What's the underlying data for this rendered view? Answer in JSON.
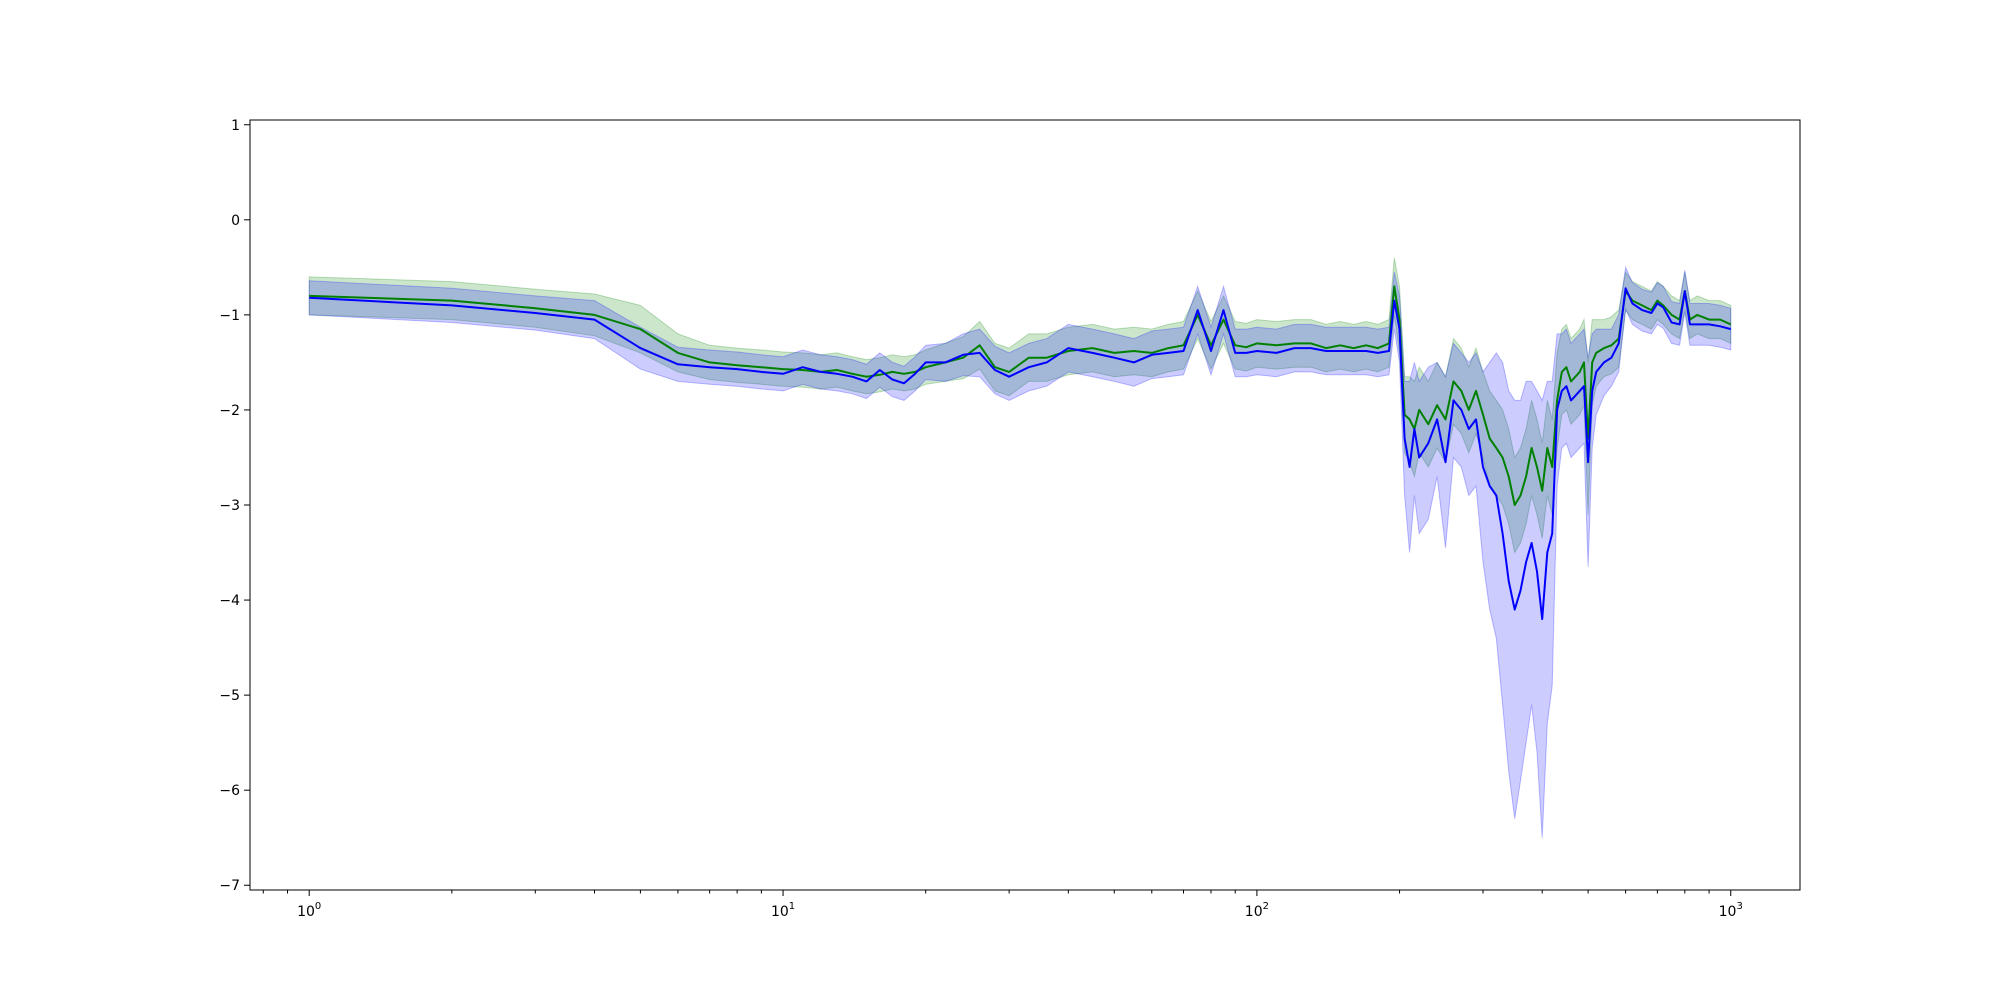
{
  "chart_data": {
    "type": "line",
    "title": "",
    "xlabel": "",
    "ylabel": "",
    "xscale": "log",
    "xlim": [
      0.75,
      1400
    ],
    "ylim": [
      -7.05,
      1.05
    ],
    "grid": false,
    "legend": "none",
    "x_ticks": [
      {
        "value": 1,
        "base": "10",
        "exp": "0"
      },
      {
        "value": 10,
        "base": "10",
        "exp": "1"
      },
      {
        "value": 100,
        "base": "10",
        "exp": "2"
      },
      {
        "value": 1000,
        "base": "10",
        "exp": "3"
      }
    ],
    "y_ticks": [
      1,
      0,
      -1,
      -2,
      -3,
      -4,
      -5,
      -6,
      -7
    ],
    "series": [
      {
        "color": "#008000",
        "band_color": "#008000",
        "x": [
          1,
          2,
          3,
          4,
          5,
          6,
          7,
          8,
          9,
          10,
          11,
          12,
          13,
          14,
          15,
          16,
          17,
          18,
          19,
          20,
          22,
          24,
          26,
          28,
          30,
          33,
          36,
          40,
          45,
          50,
          55,
          60,
          65,
          70,
          75,
          80,
          85,
          90,
          95,
          100,
          110,
          120,
          130,
          140,
          150,
          160,
          170,
          180,
          190,
          195,
          200,
          205,
          210,
          215,
          220,
          230,
          240,
          250,
          260,
          270,
          280,
          290,
          300,
          310,
          320,
          330,
          340,
          350,
          360,
          370,
          380,
          390,
          400,
          410,
          420,
          430,
          440,
          450,
          460,
          470,
          480,
          490,
          500,
          510,
          520,
          540,
          560,
          580,
          600,
          620,
          650,
          680,
          700,
          720,
          750,
          780,
          800,
          820,
          850,
          900,
          950,
          1000
        ],
        "mean": [
          -0.8,
          -0.85,
          -0.93,
          -1.0,
          -1.15,
          -1.4,
          -1.5,
          -1.53,
          -1.55,
          -1.57,
          -1.58,
          -1.6,
          -1.58,
          -1.62,
          -1.65,
          -1.63,
          -1.6,
          -1.62,
          -1.6,
          -1.55,
          -1.5,
          -1.45,
          -1.32,
          -1.55,
          -1.6,
          -1.45,
          -1.45,
          -1.38,
          -1.35,
          -1.4,
          -1.38,
          -1.4,
          -1.35,
          -1.32,
          -1.0,
          -1.32,
          -1.05,
          -1.32,
          -1.34,
          -1.3,
          -1.32,
          -1.3,
          -1.3,
          -1.35,
          -1.32,
          -1.35,
          -1.32,
          -1.35,
          -1.3,
          -0.7,
          -1.05,
          -2.05,
          -2.1,
          -2.2,
          -2.0,
          -2.15,
          -1.95,
          -2.1,
          -1.7,
          -1.8,
          -2.0,
          -1.8,
          -2.05,
          -2.3,
          -2.4,
          -2.5,
          -2.7,
          -3.0,
          -2.9,
          -2.7,
          -2.4,
          -2.6,
          -2.85,
          -2.4,
          -2.6,
          -1.9,
          -1.6,
          -1.55,
          -1.7,
          -1.65,
          -1.6,
          -1.5,
          -2.3,
          -1.5,
          -1.4,
          -1.35,
          -1.32,
          -1.25,
          -0.75,
          -0.85,
          -0.9,
          -0.95,
          -0.85,
          -0.9,
          -1.0,
          -1.05,
          -0.75,
          -1.05,
          -1.0,
          -1.05,
          -1.05,
          -1.1
        ],
        "band": [
          0.2,
          0.2,
          0.2,
          0.22,
          0.25,
          0.2,
          0.18,
          0.18,
          0.18,
          0.18,
          0.18,
          0.18,
          0.18,
          0.18,
          0.18,
          0.18,
          0.18,
          0.18,
          0.18,
          0.18,
          0.2,
          0.22,
          0.25,
          0.25,
          0.25,
          0.25,
          0.25,
          0.25,
          0.25,
          0.25,
          0.25,
          0.25,
          0.25,
          0.25,
          0.25,
          0.25,
          0.25,
          0.25,
          0.25,
          0.25,
          0.25,
          0.25,
          0.25,
          0.25,
          0.25,
          0.25,
          0.25,
          0.25,
          0.25,
          0.3,
          0.35,
          0.4,
          0.45,
          0.5,
          0.45,
          0.45,
          0.45,
          0.45,
          0.45,
          0.45,
          0.45,
          0.45,
          0.45,
          0.5,
          0.5,
          0.5,
          0.5,
          0.5,
          0.5,
          0.5,
          0.5,
          0.5,
          0.5,
          0.5,
          0.5,
          0.5,
          0.45,
          0.45,
          0.45,
          0.45,
          0.45,
          0.45,
          0.8,
          0.45,
          0.35,
          0.3,
          0.3,
          0.3,
          0.2,
          0.2,
          0.2,
          0.2,
          0.2,
          0.2,
          0.2,
          0.2,
          0.2,
          0.2,
          0.2,
          0.2,
          0.2,
          0.2
        ]
      },
      {
        "color": "#0000ff",
        "band_color": "#0000ff",
        "x": [
          1,
          2,
          3,
          4,
          5,
          6,
          7,
          8,
          9,
          10,
          11,
          12,
          13,
          14,
          15,
          16,
          17,
          18,
          19,
          20,
          22,
          24,
          26,
          28,
          30,
          33,
          36,
          40,
          45,
          50,
          55,
          60,
          65,
          70,
          75,
          80,
          85,
          90,
          95,
          100,
          110,
          120,
          130,
          140,
          150,
          160,
          170,
          180,
          190,
          195,
          200,
          205,
          210,
          215,
          220,
          230,
          240,
          250,
          260,
          270,
          280,
          290,
          300,
          310,
          320,
          330,
          340,
          350,
          360,
          370,
          380,
          390,
          400,
          410,
          420,
          430,
          440,
          450,
          460,
          470,
          480,
          490,
          500,
          510,
          520,
          540,
          560,
          580,
          600,
          620,
          650,
          680,
          700,
          720,
          750,
          780,
          800,
          820,
          850,
          900,
          950,
          1000
        ],
        "mean": [
          -0.82,
          -0.9,
          -0.98,
          -1.05,
          -1.35,
          -1.52,
          -1.55,
          -1.57,
          -1.6,
          -1.62,
          -1.55,
          -1.6,
          -1.62,
          -1.65,
          -1.7,
          -1.58,
          -1.68,
          -1.72,
          -1.62,
          -1.5,
          -1.5,
          -1.42,
          -1.4,
          -1.58,
          -1.65,
          -1.55,
          -1.5,
          -1.35,
          -1.4,
          -1.45,
          -1.5,
          -1.42,
          -1.4,
          -1.38,
          -0.95,
          -1.38,
          -0.95,
          -1.4,
          -1.4,
          -1.38,
          -1.4,
          -1.35,
          -1.35,
          -1.38,
          -1.38,
          -1.38,
          -1.38,
          -1.4,
          -1.38,
          -0.85,
          -1.15,
          -2.3,
          -2.6,
          -2.2,
          -2.5,
          -2.35,
          -2.1,
          -2.55,
          -1.9,
          -2.0,
          -2.2,
          -2.1,
          -2.6,
          -2.8,
          -2.9,
          -3.3,
          -3.8,
          -4.1,
          -3.9,
          -3.6,
          -3.4,
          -3.7,
          -4.2,
          -3.5,
          -3.3,
          -2.0,
          -1.8,
          -1.75,
          -1.9,
          -1.85,
          -1.8,
          -1.75,
          -2.55,
          -1.8,
          -1.6,
          -1.5,
          -1.45,
          -1.3,
          -0.72,
          -0.88,
          -0.95,
          -0.98,
          -0.88,
          -0.92,
          -1.08,
          -1.1,
          -0.75,
          -1.1,
          -1.1,
          -1.1,
          -1.12,
          -1.15
        ],
        "band": [
          0.18,
          0.18,
          0.18,
          0.2,
          0.22,
          0.18,
          0.18,
          0.18,
          0.18,
          0.18,
          0.18,
          0.18,
          0.18,
          0.18,
          0.18,
          0.18,
          0.18,
          0.18,
          0.18,
          0.18,
          0.2,
          0.22,
          0.25,
          0.25,
          0.25,
          0.25,
          0.25,
          0.25,
          0.25,
          0.25,
          0.25,
          0.25,
          0.25,
          0.25,
          0.25,
          0.25,
          0.25,
          0.25,
          0.25,
          0.25,
          0.25,
          0.25,
          0.25,
          0.25,
          0.25,
          0.25,
          0.25,
          0.25,
          0.25,
          0.3,
          0.35,
          0.6,
          0.9,
          0.7,
          0.8,
          0.8,
          0.6,
          0.9,
          0.6,
          0.6,
          0.7,
          0.7,
          1.0,
          1.3,
          1.5,
          1.8,
          2.0,
          2.2,
          2.0,
          1.9,
          1.7,
          1.9,
          2.3,
          1.8,
          1.6,
          0.8,
          0.6,
          0.6,
          0.6,
          0.6,
          0.6,
          0.6,
          1.1,
          0.6,
          0.45,
          0.35,
          0.3,
          0.3,
          0.22,
          0.22,
          0.22,
          0.22,
          0.22,
          0.22,
          0.22,
          0.22,
          0.22,
          0.22,
          0.22,
          0.22,
          0.22,
          0.22
        ]
      }
    ]
  }
}
